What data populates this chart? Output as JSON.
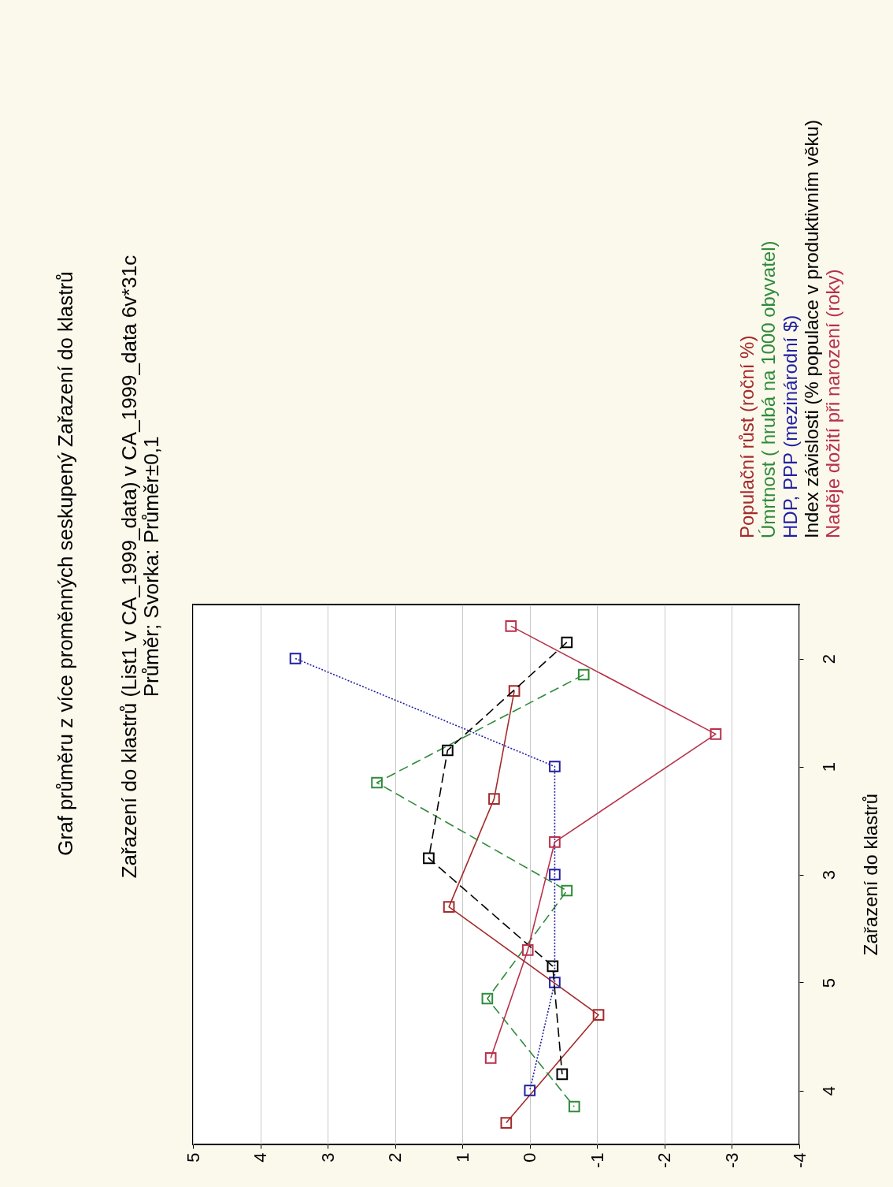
{
  "chart_data": {
    "type": "line",
    "orientation": "horizontal",
    "title": "Graf průměru z více proměnných seskupený Zařazení do klastrů",
    "subtitle": "Zařazení do klastrů (List1 v CA_1999_data) v CA_1999_data 6v*31c",
    "annotations": [
      "Průměr; Svorka: Průměr±0,1"
    ],
    "ylabel": "Zařazení do klastrů",
    "categories": [
      "2",
      "1",
      "3",
      "5",
      "4"
    ],
    "xlim": [
      5,
      -4
    ],
    "xticks": [
      5,
      4,
      3,
      2,
      1,
      0,
      -1,
      -2,
      -3,
      -4
    ],
    "grid": "x",
    "legend": "top right",
    "marker": "square",
    "series": [
      {
        "name": "Populační růst (roční %)",
        "color": "#a52a2a",
        "line_style": "solid",
        "values": [
          0.23,
          0.53,
          1.2,
          -1.02,
          0.35
        ]
      },
      {
        "name": "Úmrtnost ( hrubá na 1000 obyvatel)",
        "color": "#2e8b3a",
        "line_style": "dashed",
        "values": [
          -0.8,
          2.27,
          -0.55,
          0.63,
          -0.66
        ]
      },
      {
        "name": "HDP, PPP (mezinárodní $)",
        "color": "#2020a0",
        "line_style": "dotted",
        "values": [
          3.48,
          -0.37,
          -0.37,
          -0.37,
          0.0
        ]
      },
      {
        "name": "Index závislosti (% populace v produktivním věku)",
        "color": "#000000",
        "line_style": "dashed",
        "values": [
          -0.55,
          1.22,
          1.5,
          -0.34,
          -0.48
        ]
      },
      {
        "name": "Naděje dožití při narození (roky)",
        "color": "#b8304a",
        "line_style": "solid",
        "values": [
          0.28,
          -2.76,
          -0.37,
          0.03,
          0.58
        ]
      }
    ]
  }
}
